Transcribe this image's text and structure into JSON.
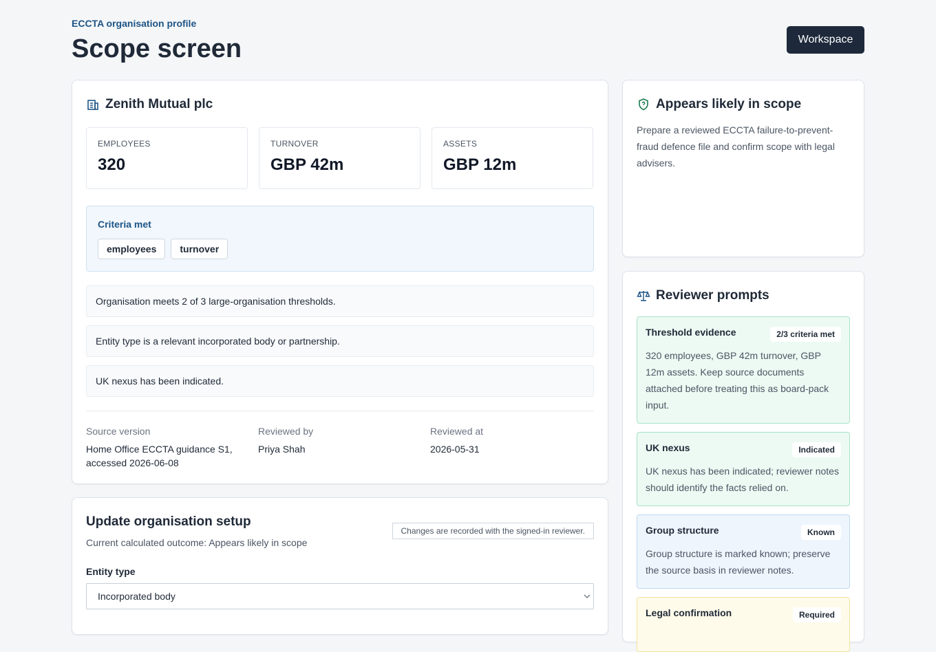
{
  "header": {
    "eyebrow": "ECCTA organisation profile",
    "title": "Scope screen",
    "button": "Workspace"
  },
  "organisation": {
    "name": "Zenith Mutual plc",
    "metrics": [
      {
        "label": "EMPLOYEES",
        "value": "320"
      },
      {
        "label": "TURNOVER",
        "value": "GBP 42m"
      },
      {
        "label": "ASSETS",
        "value": "GBP 12m"
      }
    ],
    "criteria": {
      "title": "Criteria met",
      "tags": [
        "employees",
        "turnover"
      ]
    },
    "findings": [
      "Organisation meets 2 of 3 large-organisation thresholds.",
      "Entity type is a relevant incorporated body or partnership.",
      "UK nexus has been indicated."
    ],
    "meta": [
      {
        "label": "Source version",
        "value": "Home Office ECCTA guidance S1, accessed 2026-06-08"
      },
      {
        "label": "Reviewed by",
        "value": "Priya Shah"
      },
      {
        "label": "Reviewed at",
        "value": "2026-05-31"
      }
    ]
  },
  "setup": {
    "title": "Update organisation setup",
    "outcome": "Current calculated outcome: Appears likely in scope",
    "note": "Changes are recorded with the signed-in reviewer.",
    "field_label": "Entity type",
    "field_value": "Incorporated body"
  },
  "outcome": {
    "title": "Appears likely in scope",
    "text": "Prepare a reviewed ECCTA failure-to-prevent-fraud defence file and confirm scope with legal advisers."
  },
  "prompts": {
    "title": "Reviewer prompts",
    "items": [
      {
        "title": "Threshold evidence",
        "badge": "2/3 criteria met",
        "text": "320 employees, GBP 42m turnover, GBP 12m assets. Keep source documents attached before treating this as board-pack input."
      },
      {
        "title": "UK nexus",
        "badge": "Indicated",
        "text": "UK nexus has been indicated; reviewer notes should identify the facts relied on."
      },
      {
        "title": "Group structure",
        "badge": "Known",
        "text": "Group structure is marked known; preserve the source basis in reviewer notes."
      },
      {
        "title": "Legal confirmation",
        "badge": "Required"
      }
    ]
  }
}
